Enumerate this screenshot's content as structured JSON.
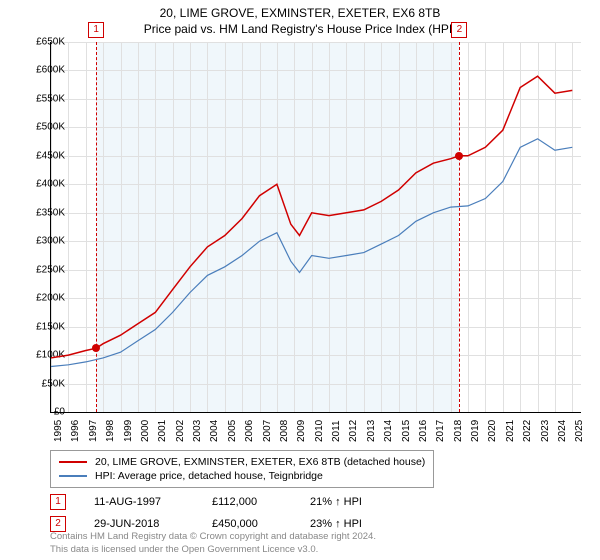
{
  "title": "20, LIME GROVE, EXMINSTER, EXETER, EX6 8TB",
  "subtitle": "Price paid vs. HM Land Registry's House Price Index (HPI)",
  "chart": {
    "type": "line",
    "background_color": "#ffffff",
    "grid_color": "#e0e0e0",
    "shade_color": "#eaf3fa",
    "xlim": [
      1995,
      2025.5
    ],
    "ylim": [
      0,
      650000
    ],
    "ytick_step": 50000,
    "ytick_labels": [
      "£0",
      "£50K",
      "£100K",
      "£150K",
      "£200K",
      "£250K",
      "£300K",
      "£350K",
      "£400K",
      "£450K",
      "£500K",
      "£550K",
      "£600K",
      "£650K"
    ],
    "xticks": [
      1995,
      1996,
      1997,
      1998,
      1999,
      2000,
      2001,
      2002,
      2003,
      2004,
      2005,
      2006,
      2007,
      2008,
      2009,
      2010,
      2011,
      2012,
      2013,
      2014,
      2015,
      2016,
      2017,
      2018,
      2019,
      2020,
      2021,
      2022,
      2023,
      2024,
      2025
    ],
    "shaded_range": [
      1997.6,
      2018.5
    ],
    "series": [
      {
        "name": "20, LIME GROVE, EXMINSTER, EXETER, EX6 8TB (detached house)",
        "color": "#d00000",
        "line_width": 1.5,
        "x": [
          1995,
          1996,
          1997,
          1997.6,
          1998,
          1999,
          2000,
          2001,
          2002,
          2003,
          2004,
          2005,
          2006,
          2007,
          2008,
          2008.8,
          2009.3,
          2010,
          2011,
          2012,
          2013,
          2014,
          2015,
          2016,
          2017,
          2018,
          2018.5,
          2019,
          2020,
          2021,
          2022,
          2023,
          2024,
          2025
        ],
        "y": [
          95000,
          100000,
          108000,
          112000,
          120000,
          135000,
          155000,
          175000,
          215000,
          255000,
          290000,
          310000,
          340000,
          380000,
          400000,
          330000,
          310000,
          350000,
          345000,
          350000,
          355000,
          370000,
          390000,
          420000,
          437000,
          445000,
          450000,
          450000,
          465000,
          495000,
          570000,
          590000,
          560000,
          565000
        ]
      },
      {
        "name": "HPI: Average price, detached house, Teignbridge",
        "color": "#4a7ebb",
        "line_width": 1.2,
        "x": [
          1995,
          1996,
          1997,
          1998,
          1999,
          2000,
          2001,
          2002,
          2003,
          2004,
          2005,
          2006,
          2007,
          2008,
          2008.8,
          2009.3,
          2010,
          2011,
          2012,
          2013,
          2014,
          2015,
          2016,
          2017,
          2018,
          2019,
          2020,
          2021,
          2022,
          2023,
          2024,
          2025
        ],
        "y": [
          80000,
          83000,
          88000,
          95000,
          105000,
          125000,
          145000,
          175000,
          210000,
          240000,
          255000,
          275000,
          300000,
          315000,
          265000,
          245000,
          275000,
          270000,
          275000,
          280000,
          295000,
          310000,
          335000,
          350000,
          360000,
          362000,
          375000,
          405000,
          465000,
          480000,
          460000,
          465000
        ]
      }
    ],
    "markers": [
      {
        "id": "1",
        "x": 1997.6,
        "y": 112000
      },
      {
        "id": "2",
        "x": 2018.5,
        "y": 450000
      }
    ]
  },
  "legend": {
    "rows": [
      {
        "color": "#d00000",
        "label": "20, LIME GROVE, EXMINSTER, EXETER, EX6 8TB (detached house)"
      },
      {
        "color": "#4a7ebb",
        "label": "HPI: Average price, detached house, Teignbridge"
      }
    ]
  },
  "sales": [
    {
      "id": "1",
      "date": "11-AUG-1997",
      "price": "£112,000",
      "pct": "21% ↑ HPI"
    },
    {
      "id": "2",
      "date": "29-JUN-2018",
      "price": "£450,000",
      "pct": "23% ↑ HPI"
    }
  ],
  "footer_line1": "Contains HM Land Registry data © Crown copyright and database right 2024.",
  "footer_line2": "This data is licensed under the Open Government Licence v3.0."
}
